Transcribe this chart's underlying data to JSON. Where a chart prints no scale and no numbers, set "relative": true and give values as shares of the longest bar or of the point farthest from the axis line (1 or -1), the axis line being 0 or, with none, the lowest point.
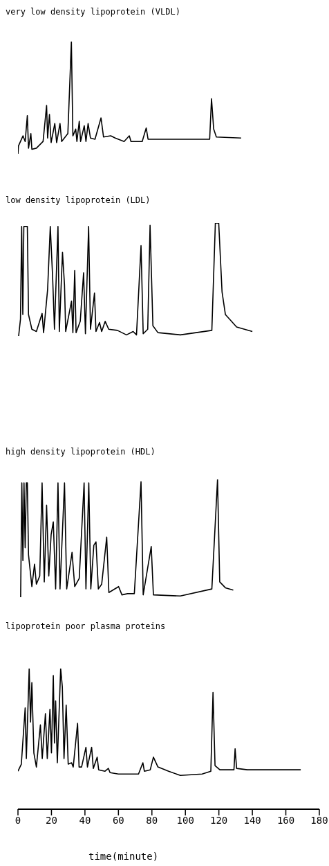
{
  "chart_data": [
    {
      "type": "line",
      "title": "very low density lipoprotein (VLDL)",
      "relative": true,
      "xlim": [
        0,
        180
      ],
      "tick_labels": false,
      "color": "#000000",
      "x": [
        0,
        0.3,
        3,
        4.3,
        5.6,
        6.3,
        7.7,
        8.3,
        11,
        15,
        17.1,
        17.7,
        18.8,
        19.8,
        22,
        23.1,
        25.1,
        26.1,
        29.8,
        31.9,
        32.8,
        34.5,
        35.2,
        36.6,
        37.4,
        39.6,
        40.6,
        41.9,
        43.3,
        46,
        49.6,
        51.1,
        55.4,
        58.1,
        63.4,
        66.5,
        67.5,
        74.2,
        76.6,
        77.7,
        83.6,
        114.5,
        115.6,
        116.9,
        118.5,
        133.3
      ],
      "values": [
        0,
        0.07,
        0.16,
        0.11,
        0.34,
        0.05,
        0.18,
        0.04,
        0.05,
        0.11,
        0.43,
        0.14,
        0.35,
        0.1,
        0.27,
        0.1,
        0.27,
        0.11,
        0.18,
        1,
        0.16,
        0.22,
        0.11,
        0.29,
        0.11,
        0.25,
        0.11,
        0.27,
        0.14,
        0.13,
        0.32,
        0.15,
        0.16,
        0.14,
        0.11,
        0.16,
        0.11,
        0.11,
        0.23,
        0.13,
        0.13,
        0.13,
        0.49,
        0.22,
        0.15,
        0.14
      ]
    },
    {
      "type": "line",
      "title": "low density lipoprotein (LDL)",
      "relative": true,
      "xlim": [
        0,
        180
      ],
      "tick_labels": false,
      "color": "#000000",
      "x": [
        0.4,
        1.5,
        2.2,
        2.9,
        3.5,
        4.2,
        5.6,
        6.3,
        8.3,
        11,
        14.4,
        15.3,
        17.7,
        19.3,
        20.7,
        21.8,
        23.9,
        24.7,
        26.6,
        27.8,
        28.5,
        32,
        32.8,
        33.9,
        34.7,
        37.2,
        39.2,
        40.3,
        42.2,
        43.3,
        45.7,
        46.6,
        48.7,
        50,
        52.1,
        54.2,
        59.4,
        64.8,
        68.8,
        70.8,
        73.5,
        74.8,
        77.5,
        78.9,
        80.6,
        83.6,
        97,
        115.8,
        117.9,
        119.9,
        121.9,
        123.9,
        130.6,
        140
      ],
      "values": [
        0,
        0.15,
        0.97,
        0.19,
        0.97,
        0.97,
        0.97,
        0.19,
        0.06,
        0.04,
        0.2,
        0.03,
        0.41,
        0.97,
        0.52,
        0.06,
        0.97,
        0.04,
        0.74,
        0.45,
        0.04,
        0.31,
        0.03,
        0.58,
        0.03,
        0.13,
        0.56,
        0.02,
        0.97,
        0.06,
        0.38,
        0.04,
        0.12,
        0.04,
        0.13,
        0.06,
        0.05,
        0.01,
        0.04,
        0.01,
        0.8,
        0.02,
        0.06,
        0.98,
        0.09,
        0.03,
        0.01,
        0.05,
        1,
        1,
        0.39,
        0.19,
        0.08,
        0.04
      ]
    },
    {
      "type": "line",
      "title": "high density lipoprotein (HDL)",
      "relative": true,
      "xlim": [
        0,
        180
      ],
      "tick_labels": false,
      "color": "#000000",
      "x": [
        1.6,
        2.3,
        2.95,
        3.6,
        4.3,
        5,
        5.6,
        6.3,
        8.3,
        9.9,
        11,
        13,
        14.4,
        15.7,
        17.1,
        18.4,
        19.8,
        21.1,
        22.5,
        23.9,
        25.1,
        27.8,
        29.1,
        32.3,
        33.9,
        36.6,
        39.5,
        40.6,
        42.3,
        43.5,
        45.3,
        46.6,
        48,
        50,
        53,
        54.3,
        60.1,
        62.1,
        65.5,
        69.5,
        73.5,
        74.8,
        79.6,
        80.9,
        97,
        115.8,
        119.2,
        120.5,
        123.9,
        128.6
      ],
      "values": [
        0,
        0.97,
        0.31,
        0.97,
        0.42,
        0.97,
        0.97,
        0.36,
        0.09,
        0.28,
        0.11,
        0.18,
        0.97,
        0.13,
        0.78,
        0.18,
        0.53,
        0.64,
        0.07,
        0.97,
        0.07,
        0.97,
        0.07,
        0.38,
        0.09,
        0.16,
        0.97,
        0.07,
        0.97,
        0.07,
        0.44,
        0.47,
        0.07,
        0.11,
        0.51,
        0.04,
        0.09,
        0.02,
        0.03,
        0.03,
        0.98,
        0.02,
        0.43,
        0.02,
        0.01,
        0.07,
        1,
        0.13,
        0.08,
        0.06
      ]
    },
    {
      "type": "line",
      "title": "lipoprotein poor plasma proteins",
      "relative": true,
      "xlim": [
        0,
        180
      ],
      "xticks": [
        0,
        20,
        40,
        60,
        80,
        100,
        120,
        140,
        160,
        180
      ],
      "xlabel": "time(minute)",
      "tick_labels": "x",
      "color": "#000000",
      "x": [
        0,
        2,
        4.3,
        5,
        6.7,
        7.5,
        8.3,
        9.5,
        11,
        13.4,
        14.5,
        16.4,
        17.5,
        19.1,
        20,
        21.1,
        21.8,
        22.5,
        23.5,
        25.5,
        26.5,
        27.5,
        28.8,
        30,
        32,
        33,
        35.6,
        36.5,
        38,
        40.6,
        41.5,
        44,
        45,
        47.3,
        48.2,
        52,
        54,
        55,
        60,
        72,
        74.6,
        75.5,
        79,
        80.9,
        83.6,
        90,
        97,
        110,
        115.2,
        116.5,
        117.7,
        120.6,
        129,
        129.7,
        130.6,
        137,
        168.9
      ],
      "values": [
        0.27,
        0.32,
        0.72,
        0.36,
        1,
        0.62,
        0.9,
        0.4,
        0.3,
        0.6,
        0.36,
        0.68,
        0.36,
        0.71,
        0.4,
        0.95,
        0.47,
        0.77,
        0.33,
        1,
        0.87,
        0.36,
        0.74,
        0.32,
        0.33,
        0.3,
        0.61,
        0.3,
        0.3,
        0.44,
        0.3,
        0.44,
        0.29,
        0.37,
        0.28,
        0.27,
        0.29,
        0.26,
        0.25,
        0.25,
        0.33,
        0.27,
        0.28,
        0.37,
        0.3,
        0.27,
        0.24,
        0.25,
        0.27,
        0.83,
        0.31,
        0.28,
        0.28,
        0.43,
        0.29,
        0.28,
        0.28
      ]
    }
  ]
}
